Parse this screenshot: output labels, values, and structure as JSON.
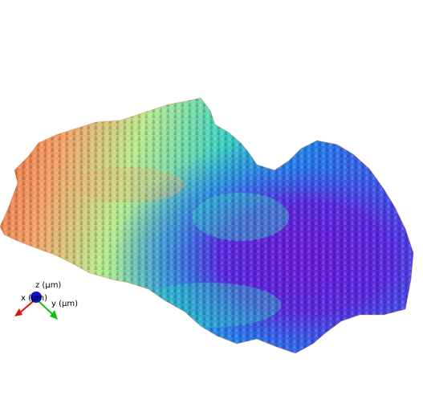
{
  "scene": {
    "kind": "3d-surface-render",
    "colormap": "rainbow",
    "colors": {
      "low": "#6a1bd8",
      "low_mid": "#1a7cf0",
      "mid": "#2fd3c6",
      "mid_high": "#b8ec8a",
      "high": "#f2a060",
      "peak": "#e2552a",
      "background": "#ffffff"
    }
  },
  "axes": {
    "x_label": "x (µm)",
    "y_label": "y (µm)",
    "z_label": "z (µm)",
    "x_color": "#e01010",
    "y_color": "#10c010",
    "z_color": "#1010c8"
  }
}
